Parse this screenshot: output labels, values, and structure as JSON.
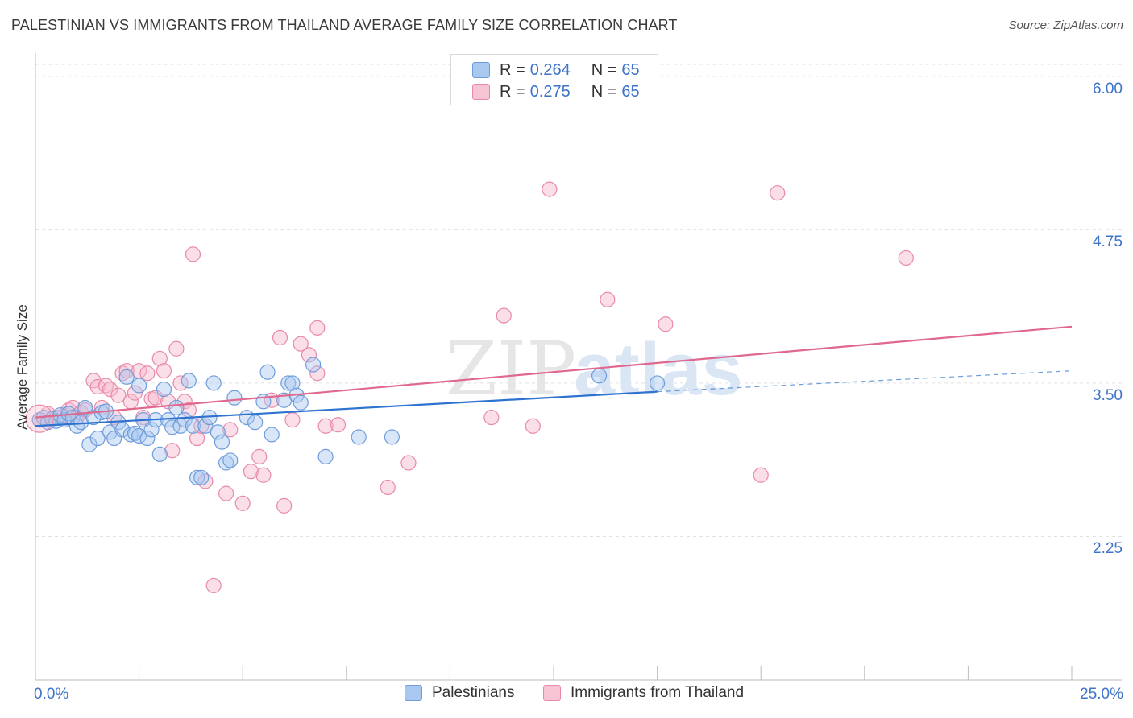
{
  "header": {
    "title": "PALESTINIAN VS IMMIGRANTS FROM THAILAND AVERAGE FAMILY SIZE CORRELATION CHART",
    "source": "Source: ZipAtlas.com"
  },
  "watermark": "ZIPatlas",
  "colors": {
    "blue_fill": "#a8c8f0",
    "blue_stroke": "#6f9ddc",
    "blue_line": "#2f73d0",
    "pink_fill": "#f6b8cb",
    "pink_stroke": "#e88aa8",
    "pink_line": "#e0688f",
    "tick_text": "#3d73c9"
  },
  "legend_top": {
    "rows": [
      {
        "r_label": "R =",
        "r_value": "0.264",
        "n_label": "N =",
        "n_value": "65"
      },
      {
        "r_label": "R =",
        "r_value": "0.275",
        "n_label": "N =",
        "n_value": "65"
      }
    ]
  },
  "legend_bottom": {
    "items": [
      "Palestinians",
      "Immigrants from Thailand"
    ]
  },
  "chart_data": {
    "type": "scatter",
    "title": "PALESTINIAN VS IMMIGRANTS FROM THAILAND AVERAGE FAMILY SIZE CORRELATION CHART",
    "xlabel": "",
    "ylabel": "Average Family Size",
    "xlim": [
      0,
      25
    ],
    "ylim": [
      1.0,
      6.15
    ],
    "x_tick_labels": [
      "0.0%",
      "25.0%"
    ],
    "y_ticks": [
      2.25,
      3.5,
      4.75,
      6.0
    ],
    "y_tick_labels": [
      "2.25",
      "3.50",
      "4.75",
      "6.00"
    ],
    "grid": "horizontal dashed",
    "legend_position": "top-center",
    "series": [
      {
        "name": "Palestinians",
        "R": 0.264,
        "N": 65,
        "trend": {
          "x0": 0.0,
          "y0": 3.15,
          "x1": 15.0,
          "y1": 3.43,
          "dash_to_x": 25.0,
          "dash_to_y": 3.6
        },
        "points": [
          [
            0.1,
            3.2
          ],
          [
            0.2,
            3.22
          ],
          [
            0.3,
            3.18
          ],
          [
            0.4,
            3.21
          ],
          [
            0.5,
            3.19
          ],
          [
            0.6,
            3.24
          ],
          [
            0.7,
            3.2
          ],
          [
            0.8,
            3.25
          ],
          [
            0.9,
            3.22
          ],
          [
            1.0,
            3.15
          ],
          [
            1.1,
            3.18
          ],
          [
            1.2,
            3.3
          ],
          [
            1.3,
            3.0
          ],
          [
            1.4,
            3.22
          ],
          [
            1.5,
            3.05
          ],
          [
            1.6,
            3.26
          ],
          [
            1.7,
            3.27
          ],
          [
            1.8,
            3.1
          ],
          [
            1.9,
            3.05
          ],
          [
            2.0,
            3.18
          ],
          [
            2.1,
            3.12
          ],
          [
            2.2,
            3.55
          ],
          [
            2.3,
            3.08
          ],
          [
            2.4,
            3.09
          ],
          [
            2.5,
            3.07
          ],
          [
            2.6,
            3.2
          ],
          [
            2.7,
            3.05
          ],
          [
            2.8,
            3.12
          ],
          [
            2.9,
            3.2
          ],
          [
            3.0,
            2.92
          ],
          [
            3.1,
            3.45
          ],
          [
            3.2,
            3.2
          ],
          [
            3.3,
            3.14
          ],
          [
            3.4,
            3.3
          ],
          [
            3.5,
            3.15
          ],
          [
            3.6,
            3.2
          ],
          [
            3.7,
            3.52
          ],
          [
            3.8,
            3.15
          ],
          [
            3.9,
            2.73
          ],
          [
            4.0,
            2.73
          ],
          [
            4.1,
            3.15
          ],
          [
            4.2,
            3.22
          ],
          [
            4.3,
            3.5
          ],
          [
            4.4,
            3.1
          ],
          [
            4.5,
            3.02
          ],
          [
            4.6,
            2.85
          ],
          [
            4.7,
            2.87
          ],
          [
            4.8,
            3.38
          ],
          [
            5.1,
            3.22
          ],
          [
            5.3,
            3.18
          ],
          [
            5.5,
            3.35
          ],
          [
            5.6,
            3.59
          ],
          [
            5.7,
            3.08
          ],
          [
            6.0,
            3.36
          ],
          [
            6.1,
            3.5
          ],
          [
            6.2,
            3.5
          ],
          [
            6.3,
            3.4
          ],
          [
            6.4,
            3.34
          ],
          [
            6.7,
            3.65
          ],
          [
            7.0,
            2.9
          ],
          [
            7.8,
            3.06
          ],
          [
            8.6,
            3.06
          ],
          [
            13.6,
            3.56
          ],
          [
            15.0,
            3.5
          ],
          [
            2.5,
            3.48
          ]
        ]
      },
      {
        "name": "Immigrants from Thailand",
        "R": 0.275,
        "N": 65,
        "trend": {
          "x0": 0.0,
          "y0": 3.22,
          "x1": 25.0,
          "y1": 3.96
        },
        "points": [
          [
            0.1,
            3.2
          ],
          [
            0.3,
            3.25
          ],
          [
            0.5,
            3.22
          ],
          [
            0.7,
            3.24
          ],
          [
            0.8,
            3.28
          ],
          [
            0.9,
            3.3
          ],
          [
            1.0,
            3.22
          ],
          [
            1.1,
            3.26
          ],
          [
            1.2,
            3.28
          ],
          [
            1.4,
            3.52
          ],
          [
            1.5,
            3.47
          ],
          [
            1.6,
            3.3
          ],
          [
            1.7,
            3.48
          ],
          [
            1.8,
            3.45
          ],
          [
            1.9,
            3.22
          ],
          [
            2.0,
            3.4
          ],
          [
            2.1,
            3.58
          ],
          [
            2.2,
            3.6
          ],
          [
            2.3,
            3.35
          ],
          [
            2.4,
            3.42
          ],
          [
            2.5,
            3.6
          ],
          [
            2.6,
            3.22
          ],
          [
            2.7,
            3.58
          ],
          [
            2.8,
            3.37
          ],
          [
            2.9,
            3.38
          ],
          [
            3.0,
            3.7
          ],
          [
            3.1,
            3.6
          ],
          [
            3.2,
            3.35
          ],
          [
            3.3,
            2.95
          ],
          [
            3.4,
            3.78
          ],
          [
            3.5,
            3.5
          ],
          [
            3.6,
            3.35
          ],
          [
            3.7,
            3.28
          ],
          [
            3.8,
            4.55
          ],
          [
            3.9,
            3.05
          ],
          [
            4.0,
            3.15
          ],
          [
            4.1,
            2.7
          ],
          [
            4.3,
            1.85
          ],
          [
            4.6,
            2.6
          ],
          [
            4.7,
            3.12
          ],
          [
            5.0,
            2.52
          ],
          [
            5.2,
            2.78
          ],
          [
            5.4,
            2.9
          ],
          [
            5.5,
            2.75
          ],
          [
            5.7,
            3.36
          ],
          [
            5.9,
            3.87
          ],
          [
            6.0,
            2.5
          ],
          [
            6.2,
            3.2
          ],
          [
            6.4,
            3.82
          ],
          [
            6.6,
            3.73
          ],
          [
            6.8,
            3.95
          ],
          [
            6.8,
            3.58
          ],
          [
            7.0,
            3.15
          ],
          [
            7.3,
            3.16
          ],
          [
            8.5,
            2.65
          ],
          [
            9.0,
            2.85
          ],
          [
            12.0,
            3.15
          ],
          [
            13.8,
            4.18
          ],
          [
            15.2,
            3.98
          ],
          [
            17.5,
            2.75
          ],
          [
            17.9,
            5.05
          ],
          [
            11.3,
            4.05
          ],
          [
            12.4,
            5.08
          ],
          [
            21.0,
            4.52
          ],
          [
            11.0,
            3.22
          ]
        ]
      }
    ]
  }
}
